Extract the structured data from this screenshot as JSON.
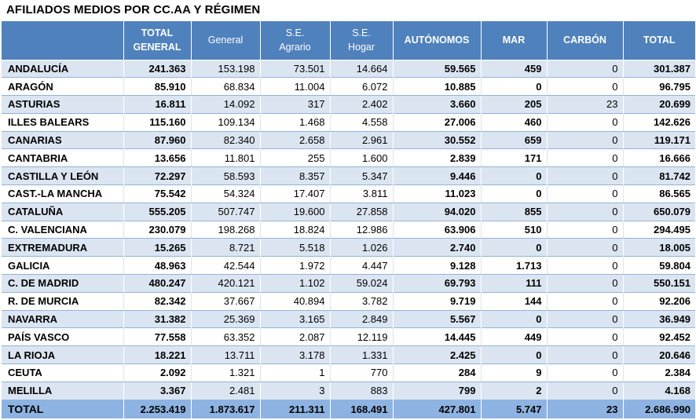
{
  "title": "AFILIADOS MEDIOS POR CC.AA Y RÉGIMEN",
  "columns": [
    {
      "line1": "",
      "line2": ""
    },
    {
      "line1": "TOTAL",
      "line2": "GENERAL"
    },
    {
      "line1": "General",
      "line2": ""
    },
    {
      "line1": "S.E.",
      "line2": "Agrario"
    },
    {
      "line1": "S.E.",
      "line2": "Hogar"
    },
    {
      "line1": "AUTÓNOMOS",
      "line2": ""
    },
    {
      "line1": "MAR",
      "line2": ""
    },
    {
      "line1": "CARBÓN",
      "line2": ""
    },
    {
      "line1": "TOTAL",
      "line2": ""
    }
  ],
  "rows": [
    [
      "ANDALUCÍA",
      "241.363",
      "153.198",
      "73.501",
      "14.664",
      "59.565",
      "459",
      "0",
      "301.387"
    ],
    [
      "ARAGÓN",
      "85.910",
      "68.834",
      "11.004",
      "6.072",
      "10.885",
      "0",
      "0",
      "96.795"
    ],
    [
      "ASTURIAS",
      "16.811",
      "14.092",
      "317",
      "2.402",
      "3.660",
      "205",
      "23",
      "20.699"
    ],
    [
      "ILLES BALEARS",
      "115.160",
      "109.134",
      "1.468",
      "4.558",
      "27.006",
      "460",
      "0",
      "142.626"
    ],
    [
      "CANARIAS",
      "87.960",
      "82.340",
      "2.658",
      "2.961",
      "30.552",
      "659",
      "0",
      "119.171"
    ],
    [
      "CANTABRIA",
      "13.656",
      "11.801",
      "255",
      "1.600",
      "2.839",
      "171",
      "0",
      "16.666"
    ],
    [
      "CASTILLA Y LEÓN",
      "72.297",
      "58.593",
      "8.357",
      "5.347",
      "9.446",
      "0",
      "0",
      "81.742"
    ],
    [
      "CAST.-LA MANCHA",
      "75.542",
      "54.324",
      "17.407",
      "3.811",
      "11.023",
      "0",
      "0",
      "86.565"
    ],
    [
      "CATALUÑA",
      "555.205",
      "507.747",
      "19.600",
      "27.858",
      "94.020",
      "855",
      "0",
      "650.079"
    ],
    [
      "C. VALENCIANA",
      "230.079",
      "198.268",
      "18.824",
      "12.986",
      "63.906",
      "510",
      "0",
      "294.495"
    ],
    [
      "EXTREMADURA",
      "15.265",
      "8.721",
      "5.518",
      "1.026",
      "2.740",
      "0",
      "0",
      "18.005"
    ],
    [
      "GALICIA",
      "48.963",
      "42.544",
      "1.972",
      "4.447",
      "9.128",
      "1.713",
      "0",
      "59.804"
    ],
    [
      "C. DE MADRID",
      "480.247",
      "420.121",
      "1.102",
      "59.024",
      "69.793",
      "111",
      "0",
      "550.151"
    ],
    [
      "R. DE MURCIA",
      "82.342",
      "37.667",
      "40.894",
      "3.782",
      "9.719",
      "144",
      "0",
      "92.206"
    ],
    [
      "NAVARRA",
      "31.382",
      "25.369",
      "3.165",
      "2.849",
      "5.567",
      "0",
      "0",
      "36.949"
    ],
    [
      "PAÍS VASCO",
      "77.558",
      "63.352",
      "2.087",
      "12.119",
      "14.445",
      "449",
      "0",
      "92.452"
    ],
    [
      "LA RIOJA",
      "18.221",
      "13.711",
      "3.178",
      "1.331",
      "2.425",
      "0",
      "0",
      "20.646"
    ],
    [
      "CEUTA",
      "2.092",
      "1.321",
      "1",
      "770",
      "284",
      "9",
      "0",
      "2.384"
    ],
    [
      "MELILLA",
      "3.367",
      "2.481",
      "3",
      "883",
      "799",
      "2",
      "0",
      "4.168"
    ]
  ],
  "total": [
    "TOTAL",
    "2.253.419",
    "1.873.617",
    "211.311",
    "168.491",
    "427.801",
    "5.747",
    "23",
    "2.686.990"
  ],
  "colors": {
    "header": "#4f81bd",
    "band": "#dbe5f1",
    "total": "#8db3e2"
  }
}
